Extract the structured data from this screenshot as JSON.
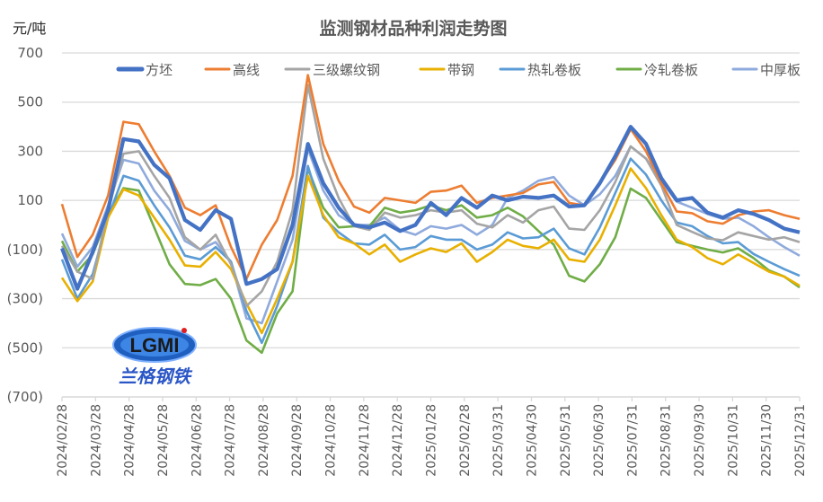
{
  "chart_data": {
    "type": "line",
    "title": "监测钢材品种利润走势图",
    "ylabel": "元/吨",
    "xlabel": "",
    "ylim": [
      -700,
      700
    ],
    "yticks": [
      700,
      500,
      300,
      100,
      -100,
      -300,
      -500,
      -700
    ],
    "ytick_labels": [
      "700",
      "500",
      "300",
      "100",
      "(100)",
      "(300)",
      "(500)",
      "(700)"
    ],
    "negative_label_color": "#FF0000",
    "grid": true,
    "legend_position": "top",
    "x_tick_labels": [
      "2024/02/28",
      "2024/03/28",
      "2024/04/28",
      "2024/05/28",
      "2024/06/28",
      "2024/07/28",
      "2024/08/28",
      "2024/09/28",
      "2024/10/28",
      "2024/11/28",
      "2024/12/28",
      "2025/01/28",
      "2025/02/28",
      "2025/03/31",
      "2025/04/30",
      "2025/05/31",
      "2025/06/30",
      "2025/07/31",
      "2025/08/31",
      "2025/09/30",
      "2025/10/31",
      "2025/11/30",
      "2025/12/31"
    ],
    "x_note": "49 approximately bi-weekly samples spanning 2024/02/28 to 2025/12/31",
    "series": [
      {
        "name": "方坯",
        "color": "#4472C4",
        "values": [
          -95,
          -260,
          -110,
          60,
          350,
          340,
          245,
          190,
          20,
          -20,
          60,
          25,
          -240,
          -220,
          -180,
          0,
          330,
          170,
          70,
          0,
          -10,
          10,
          -25,
          0,
          90,
          40,
          110,
          70,
          120,
          100,
          115,
          110,
          120,
          75,
          80,
          170,
          280,
          400,
          330,
          190,
          100,
          110,
          50,
          30,
          60,
          45,
          20,
          -15,
          -30
        ]
      },
      {
        "name": "高线",
        "color": "#ED7D31",
        "values": [
          85,
          -130,
          -40,
          120,
          420,
          410,
          300,
          200,
          70,
          40,
          80,
          -90,
          -220,
          -80,
          20,
          200,
          610,
          330,
          180,
          75,
          50,
          110,
          100,
          90,
          135,
          140,
          160,
          90,
          110,
          120,
          130,
          165,
          175,
          90,
          80,
          170,
          265,
          390,
          300,
          170,
          55,
          48,
          15,
          5,
          40,
          55,
          60,
          40,
          25
        ]
      },
      {
        "name": "三级螺纹钢",
        "color": "#A5A5A5",
        "values": [
          -85,
          -190,
          -220,
          60,
          290,
          300,
          200,
          110,
          -50,
          -100,
          -40,
          -160,
          -330,
          -270,
          -150,
          60,
          570,
          270,
          110,
          -5,
          -20,
          50,
          30,
          40,
          60,
          50,
          60,
          5,
          -10,
          40,
          10,
          60,
          75,
          -15,
          -20,
          60,
          175,
          320,
          270,
          160,
          0,
          -28,
          -55,
          -62,
          -30,
          -45,
          -60,
          -50,
          -70
        ]
      },
      {
        "name": "带钢",
        "color": "#E8B000",
        "values": [
          -215,
          -310,
          -230,
          30,
          145,
          120,
          30,
          -60,
          -165,
          -170,
          -110,
          -180,
          -320,
          -440,
          -300,
          -150,
          200,
          40,
          -50,
          -75,
          -120,
          -80,
          -150,
          -120,
          -95,
          -110,
          -75,
          -150,
          -110,
          -60,
          -85,
          -95,
          -60,
          -140,
          -150,
          -60,
          80,
          230,
          150,
          40,
          -60,
          -90,
          -135,
          -160,
          -120,
          -155,
          -190,
          -210,
          -247
        ]
      },
      {
        "name": "热轧卷板",
        "color": "#5B9BD5",
        "values": [
          -140,
          -300,
          -200,
          30,
          200,
          180,
          80,
          -10,
          -125,
          -140,
          -90,
          -150,
          -350,
          -480,
          -330,
          -150,
          240,
          30,
          -30,
          -75,
          -80,
          -40,
          -100,
          -90,
          -45,
          -60,
          -60,
          -100,
          -80,
          -30,
          -55,
          -50,
          -15,
          -95,
          -120,
          -10,
          130,
          270,
          205,
          100,
          10,
          -5,
          -45,
          -75,
          -70,
          -118,
          -150,
          -180,
          -207
        ]
      },
      {
        "name": "冷轧卷板",
        "color": "#70AD47",
        "values": [
          -65,
          -190,
          -120,
          40,
          150,
          140,
          -10,
          -160,
          -240,
          -245,
          -220,
          -300,
          -470,
          -520,
          -360,
          -270,
          230,
          70,
          -10,
          -5,
          -5,
          70,
          50,
          60,
          80,
          60,
          80,
          30,
          40,
          70,
          35,
          -24,
          -80,
          -207,
          -230,
          -160,
          -50,
          148,
          110,
          20,
          -70,
          -85,
          -100,
          -112,
          -95,
          -135,
          -185,
          -210,
          -254
        ]
      },
      {
        "name": "中厚板",
        "color": "#8FAADC",
        "values": [
          -35,
          -170,
          -90,
          80,
          265,
          250,
          140,
          60,
          -65,
          -100,
          -70,
          -150,
          -380,
          -400,
          -230,
          -60,
          310,
          140,
          40,
          0,
          0,
          30,
          -20,
          -40,
          -5,
          -15,
          0,
          -40,
          0,
          110,
          140,
          180,
          195,
          120,
          80,
          125,
          200,
          320,
          270,
          180,
          95,
          70,
          45,
          25,
          30,
          -5,
          -50,
          -90,
          -125
        ]
      }
    ]
  },
  "logo": {
    "text": "LGMI",
    "subtitle": "兰格钢铁"
  }
}
